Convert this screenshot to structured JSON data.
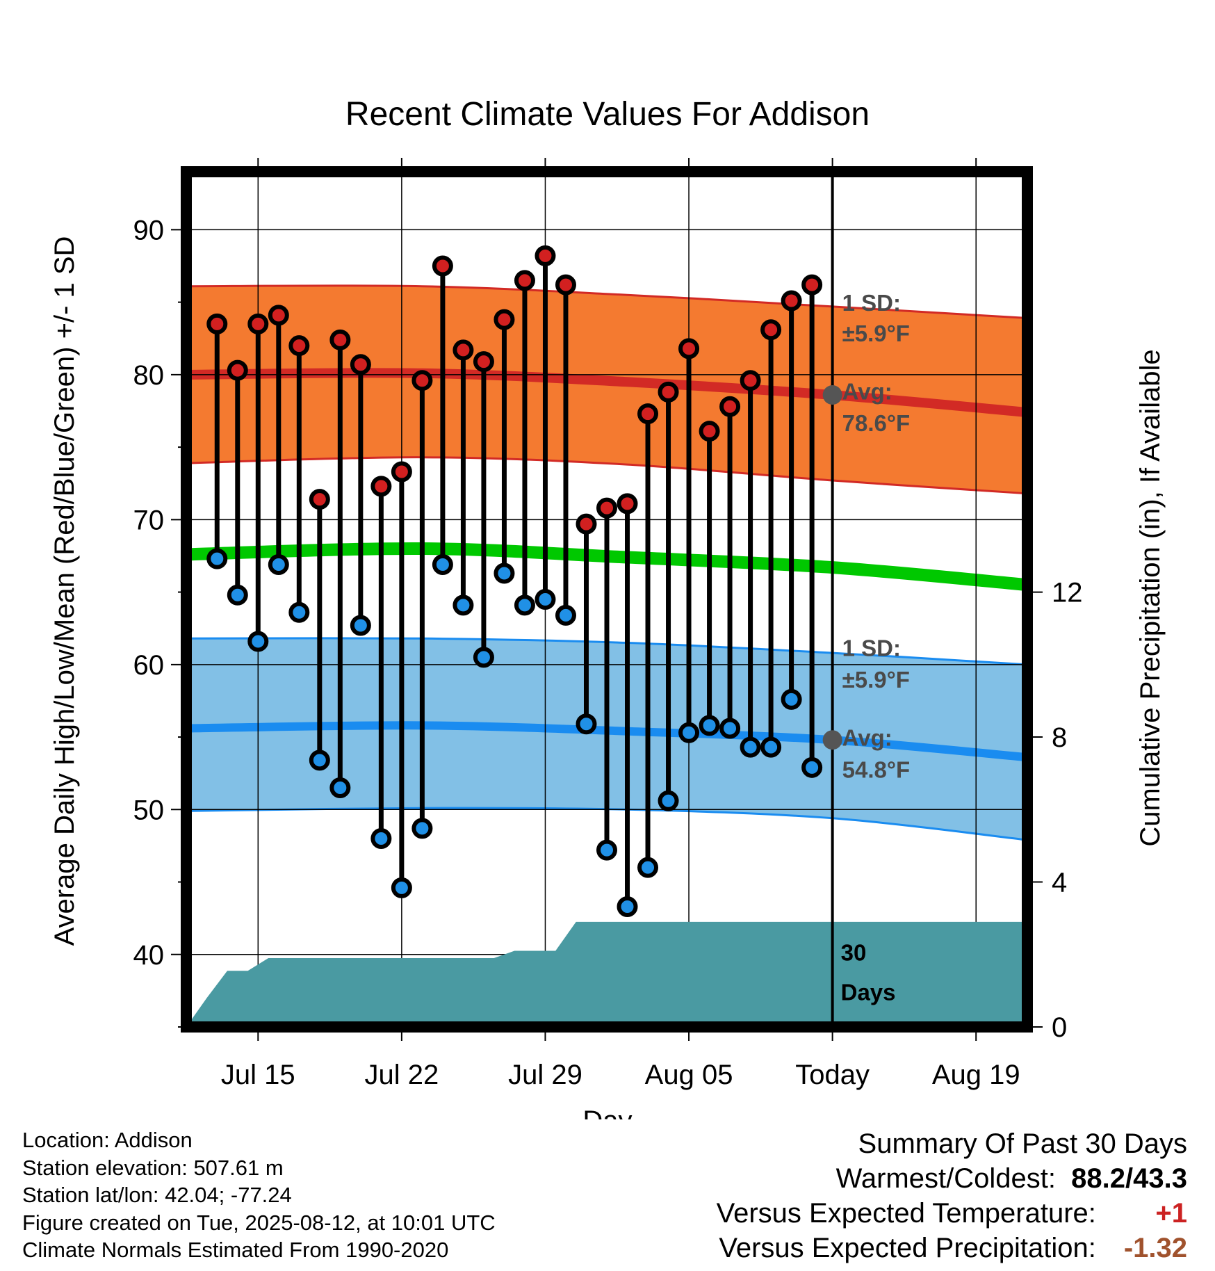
{
  "chart_data": {
    "type": "line",
    "title": "Recent Climate Values For Addison",
    "xlabel": "Day",
    "ylabel_left": "Average Daily High/Low/Mean (Red/Blue/Green) +/- 1 SD",
    "ylabel_right": "Cumulative Precipitation (in), If Available",
    "x_tick_labels": [
      "Jul 15",
      "Jul 22",
      "Jul 29",
      "Aug 05",
      "Today",
      "Aug 19"
    ],
    "y_left_ticks": [
      "40",
      "50",
      "60",
      "70",
      "80",
      "90"
    ],
    "y_right_ticks": [
      "0",
      "4",
      "8",
      "12"
    ],
    "ylim_left": [
      35,
      94
    ],
    "ylim_right": [
      0,
      23.6
    ],
    "x_range_days": [
      -31.5,
      9.5
    ],
    "today_marker": 0,
    "grid": true,
    "daily": {
      "day_offset": [
        -30,
        -29,
        -28,
        -27,
        -26,
        -25,
        -24,
        -23,
        -22,
        -21,
        -20,
        -19,
        -18,
        -17,
        -16,
        -15,
        -14,
        -13,
        -12,
        -11,
        -10,
        -9,
        -8,
        -7,
        -6,
        -5,
        -4,
        -3,
        -2,
        -1
      ],
      "high": [
        83.5,
        80.3,
        83.5,
        84.1,
        82.0,
        71.4,
        82.4,
        80.7,
        72.3,
        73.3,
        79.6,
        87.5,
        81.7,
        80.9,
        83.8,
        86.5,
        88.2,
        86.2,
        69.7,
        70.8,
        71.1,
        77.3,
        78.8,
        81.8,
        76.1,
        77.8,
        79.6,
        83.1,
        85.1,
        86.2
      ],
      "low": [
        67.3,
        64.8,
        61.6,
        66.9,
        63.6,
        53.4,
        51.5,
        62.7,
        48.0,
        44.6,
        48.7,
        66.9,
        64.1,
        60.5,
        66.3,
        64.1,
        64.5,
        63.4,
        55.9,
        47.2,
        43.3,
        46.0,
        50.6,
        55.3,
        55.8,
        55.6,
        54.3,
        54.3,
        57.6,
        52.9
      ]
    },
    "normals": {
      "days": [
        -31.5,
        -20,
        -10,
        0,
        9.5
      ],
      "high_avg": [
        80.0,
        80.1,
        79.5,
        78.6,
        77.4
      ],
      "high_upper": [
        86.1,
        86.1,
        85.5,
        84.7,
        83.9
      ],
      "high_lower": [
        73.9,
        74.3,
        73.8,
        72.7,
        71.8
      ],
      "mean_avg": [
        67.6,
        68.0,
        67.4,
        66.7,
        65.5
      ],
      "low_avg": [
        55.6,
        55.8,
        55.4,
        54.8,
        53.6
      ],
      "low_upper": [
        61.8,
        61.8,
        61.5,
        60.8,
        60.0
      ],
      "low_lower": [
        49.9,
        50.1,
        50.0,
        49.4,
        47.9
      ]
    },
    "cumulative_precip": {
      "x": [
        -31.5,
        -30.5,
        -29.5,
        -28.5,
        -27.5,
        -26.5,
        -24.5,
        -22.5,
        -20.5,
        -18.5,
        -16.5,
        -15.5,
        -13.5,
        -12.5,
        -10.5,
        -5.5,
        9.5
      ],
      "y": [
        0.0,
        0.8,
        1.55,
        1.55,
        1.9,
        1.9,
        1.9,
        1.9,
        1.9,
        1.9,
        1.9,
        2.1,
        2.1,
        2.9,
        2.9,
        2.9,
        2.9
      ]
    },
    "annotations": {
      "high_sd_line1": "1 SD:",
      "high_sd_line2": "±5.9°F",
      "high_avg_line1": "Avg:",
      "high_avg_line2": "78.6°F",
      "low_sd_line1": "1 SD:",
      "low_sd_line2": "±5.9°F",
      "low_avg_line1": "Avg:",
      "low_avg_line2": "54.8°F",
      "window_line1": "30",
      "window_line2": "Days"
    },
    "colors": {
      "high_band": "#f47a30",
      "high_avg": "#d22a25",
      "mean": "#00c800",
      "low_band": "#82c0e6",
      "low_avg": "#1a8cf0",
      "precip": "#4a9aa2",
      "high_marker": "#d22020",
      "low_marker": "#2090e6",
      "avg_marker": "#555555"
    }
  },
  "footer": {
    "location": "Location: Addison",
    "elevation": "Station elevation: 507.61 m",
    "latlon": "Station lat/lon: 42.04; -77.24",
    "created": "Figure created on Tue, 2025-08-12, at 10:01 UTC",
    "normals": "Climate Normals Estimated From 1990-2020"
  },
  "summary": {
    "heading": "Summary Of Past 30 Days",
    "warmest_label": "Warmest/Coldest:",
    "warmest_value": "88.2/43.3",
    "temp_label": "Versus Expected Temperature:",
    "temp_value": "+1",
    "temp_color": "#cc2222",
    "precip_label": "Versus Expected Precipitation:",
    "precip_value": "-1.32",
    "precip_color": "#a0522d"
  }
}
